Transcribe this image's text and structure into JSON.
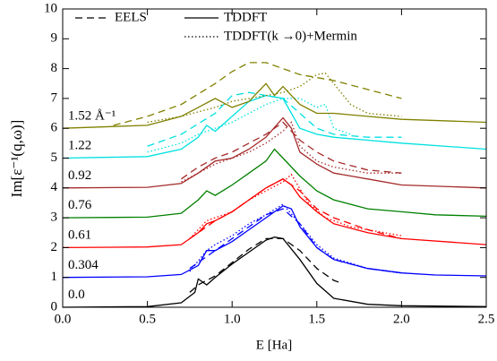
{
  "chart_data": {
    "type": "line",
    "xlabel": "E [Ha]",
    "ylabel": "Im[ε⁻¹(q,ω)]",
    "xlim": [
      0,
      2.5
    ],
    "ylim": [
      0,
      10
    ],
    "xticks": [
      {
        "value": 0,
        "label": "0.0"
      },
      0.5,
      {
        "value": 1,
        "label": "1.0"
      },
      1.5,
      {
        "value": 2,
        "label": "2.0"
      },
      2.5
    ],
    "yticks": [
      0,
      1,
      2,
      3,
      4,
      5,
      6,
      7,
      8,
      9,
      10
    ],
    "legend": {
      "eels": "EELS",
      "tddft": "TDDFT",
      "mermin": "TDDFT(k →0)+Mermin"
    },
    "groups": [
      {
        "label": "0.0",
        "color": "#000000",
        "tddft": {
          "x": [
            0,
            0.5,
            0.7,
            0.78,
            0.8,
            0.85,
            0.9,
            1.0,
            1.1,
            1.2,
            1.25,
            1.3,
            1.4,
            1.5,
            1.6,
            1.8,
            2.0,
            2.5
          ],
          "values": [
            0,
            0.02,
            0.15,
            0.5,
            0.95,
            0.75,
            1.0,
            1.45,
            1.85,
            2.25,
            2.35,
            2.3,
            1.6,
            0.8,
            0.3,
            0.1,
            0.05,
            0.02
          ]
        },
        "eels": {
          "x": [
            0.75,
            0.8,
            0.9,
            1.0,
            1.1,
            1.2,
            1.3,
            1.4,
            1.5,
            1.6,
            1.65
          ],
          "values": [
            0.5,
            0.75,
            1.05,
            1.5,
            1.95,
            2.3,
            2.3,
            1.9,
            1.3,
            0.9,
            0.8
          ]
        }
      },
      {
        "label": "0.304",
        "color": "#0000ff",
        "tddft": {
          "x": [
            0,
            0.5,
            0.7,
            0.8,
            0.85,
            0.9,
            1.0,
            1.1,
            1.2,
            1.3,
            1.35,
            1.4,
            1.5,
            1.6,
            1.8,
            2.0,
            2.2,
            2.5
          ],
          "values": [
            1,
            1.02,
            1.1,
            1.4,
            1.9,
            1.9,
            2.2,
            2.6,
            3.0,
            3.4,
            3.3,
            2.7,
            2.0,
            1.6,
            1.3,
            1.15,
            1.08,
            1.05
          ]
        },
        "eels": {
          "x": [
            0.75,
            0.9,
            1.0,
            1.1,
            1.2,
            1.3,
            1.4,
            1.5,
            1.6,
            1.8,
            2.0
          ],
          "values": [
            1.3,
            1.9,
            2.3,
            2.7,
            3.1,
            3.3,
            2.8,
            2.0,
            1.6,
            1.3,
            1.15
          ]
        },
        "mermin": {
          "x": [
            0.75,
            0.85,
            0.9,
            1.0,
            1.1,
            1.2,
            1.3,
            1.4,
            1.5,
            1.6,
            1.8,
            2.0
          ],
          "values": [
            1.2,
            1.9,
            2.1,
            2.4,
            2.8,
            3.1,
            3.45,
            2.8,
            2.1,
            1.65,
            1.3,
            1.15
          ]
        }
      },
      {
        "label": "0.61",
        "color": "#ff0000",
        "tddft": {
          "x": [
            0,
            0.5,
            0.7,
            0.8,
            0.85,
            0.9,
            1.0,
            1.1,
            1.2,
            1.3,
            1.35,
            1.4,
            1.5,
            1.6,
            1.8,
            2.0,
            2.5
          ],
          "values": [
            2,
            2.02,
            2.1,
            2.5,
            2.8,
            2.9,
            3.2,
            3.6,
            4.0,
            4.3,
            4.1,
            3.7,
            3.2,
            2.8,
            2.5,
            2.3,
            2.1
          ]
        },
        "eels": {
          "x": [
            0.75,
            0.9,
            1.0,
            1.1,
            1.2,
            1.3,
            1.4,
            1.5,
            1.6,
            1.8,
            2.0
          ],
          "values": [
            2.3,
            2.9,
            3.2,
            3.6,
            4.0,
            4.3,
            3.9,
            3.3,
            3.0,
            2.6,
            2.3
          ]
        },
        "mermin": {
          "x": [
            0.75,
            0.85,
            1.0,
            1.1,
            1.2,
            1.3,
            1.35,
            1.45,
            1.55,
            1.7,
            1.9,
            2.0
          ],
          "values": [
            2.3,
            2.9,
            3.2,
            3.6,
            3.9,
            4.2,
            4.45,
            3.5,
            3.0,
            2.7,
            2.5,
            2.4
          ]
        }
      },
      {
        "label": "0.76",
        "color": "#008000",
        "tddft": {
          "x": [
            0,
            0.5,
            0.7,
            0.8,
            0.85,
            0.9,
            1.0,
            1.1,
            1.2,
            1.25,
            1.3,
            1.4,
            1.5,
            1.6,
            1.8,
            2.0,
            2.2,
            2.5
          ],
          "values": [
            3,
            3.02,
            3.15,
            3.6,
            3.9,
            3.75,
            4.1,
            4.5,
            4.9,
            5.3,
            5.0,
            4.4,
            3.9,
            3.6,
            3.3,
            3.2,
            3.1,
            3.05
          ]
        }
      },
      {
        "label": "0.92",
        "color": "#a52a2a",
        "tddft": {
          "x": [
            0,
            0.5,
            0.7,
            0.8,
            0.9,
            1.0,
            1.1,
            1.2,
            1.3,
            1.35,
            1.4,
            1.5,
            1.6,
            1.8,
            2.0,
            2.5
          ],
          "values": [
            4,
            4.02,
            4.15,
            4.5,
            4.9,
            5.0,
            5.3,
            5.7,
            6.35,
            6.0,
            5.2,
            4.8,
            4.5,
            4.3,
            4.1,
            4.0
          ]
        },
        "eels": {
          "x": [
            0.7,
            0.8,
            0.9,
            1.0,
            1.1,
            1.2,
            1.3,
            1.4,
            1.5,
            1.6,
            1.8,
            2.0
          ],
          "values": [
            4.3,
            4.7,
            5.0,
            5.2,
            5.5,
            5.8,
            6.2,
            5.6,
            5.2,
            4.9,
            4.6,
            4.5
          ]
        },
        "mermin": {
          "x": [
            0.7,
            0.8,
            0.9,
            1.0,
            1.1,
            1.2,
            1.3,
            1.35,
            1.4,
            1.5,
            1.6,
            1.8,
            2.0
          ],
          "values": [
            4.2,
            4.5,
            4.8,
            5.0,
            5.2,
            5.5,
            5.9,
            6.2,
            5.4,
            4.9,
            4.7,
            4.5,
            4.5
          ]
        }
      },
      {
        "label": "1.22",
        "color": "#00e0e0",
        "tddft": {
          "x": [
            0,
            0.5,
            0.7,
            0.8,
            0.85,
            0.9,
            1.0,
            1.1,
            1.2,
            1.3,
            1.35,
            1.4,
            1.5,
            1.6,
            1.8,
            2.0,
            2.5
          ],
          "values": [
            5,
            5.05,
            5.3,
            5.7,
            6.1,
            5.9,
            6.4,
            6.9,
            7.1,
            7.0,
            6.5,
            6.0,
            5.8,
            5.7,
            5.6,
            5.5,
            5.3
          ]
        },
        "eels": {
          "x": [
            0.5,
            0.7,
            0.9,
            1.0,
            1.1,
            1.2,
            1.3,
            1.4,
            1.5,
            1.6,
            1.8,
            2.0
          ],
          "values": [
            5.4,
            5.8,
            6.5,
            7.1,
            7.2,
            7.1,
            7.0,
            6.5,
            6.0,
            5.8,
            5.7,
            5.7
          ]
        },
        "mermin": {
          "x": [
            0.5,
            0.7,
            0.8,
            0.9,
            1.0,
            1.1,
            1.2,
            1.3,
            1.4,
            1.5,
            1.55,
            1.6,
            1.7
          ],
          "values": [
            5.2,
            5.5,
            5.8,
            6.0,
            6.2,
            6.5,
            6.8,
            7.0,
            7.0,
            6.7,
            6.8,
            6.0,
            5.8
          ]
        }
      },
      {
        "label": "1.52 Å⁻¹",
        "color": "#808000",
        "tddft": {
          "x": [
            0,
            0.5,
            0.7,
            0.8,
            0.9,
            1.0,
            1.1,
            1.2,
            1.25,
            1.3,
            1.4,
            1.5,
            1.6,
            1.8,
            2.0,
            2.5
          ],
          "values": [
            6,
            6.1,
            6.4,
            6.7,
            7.0,
            6.7,
            6.9,
            7.5,
            7.1,
            7.4,
            6.8,
            6.5,
            6.5,
            6.4,
            6.3,
            6.2
          ]
        },
        "eels": {
          "x": [
            0.3,
            0.5,
            0.7,
            0.9,
            1.0,
            1.1,
            1.2,
            1.3,
            1.4,
            1.5,
            1.6,
            1.8,
            2.0
          ],
          "values": [
            6.1,
            6.4,
            6.8,
            7.5,
            7.9,
            8.2,
            8.2,
            8.0,
            7.8,
            7.7,
            7.6,
            7.3,
            7.0
          ]
        },
        "mermin": {
          "x": [
            0.5,
            0.7,
            0.9,
            1.0,
            1.1,
            1.2,
            1.3,
            1.4,
            1.5,
            1.55,
            1.6,
            1.7,
            1.8,
            2.0
          ],
          "values": [
            6.2,
            6.4,
            6.7,
            6.9,
            7.0,
            7.1,
            7.2,
            7.4,
            7.8,
            7.85,
            7.5,
            6.8,
            6.5,
            6.4
          ]
        }
      }
    ]
  }
}
